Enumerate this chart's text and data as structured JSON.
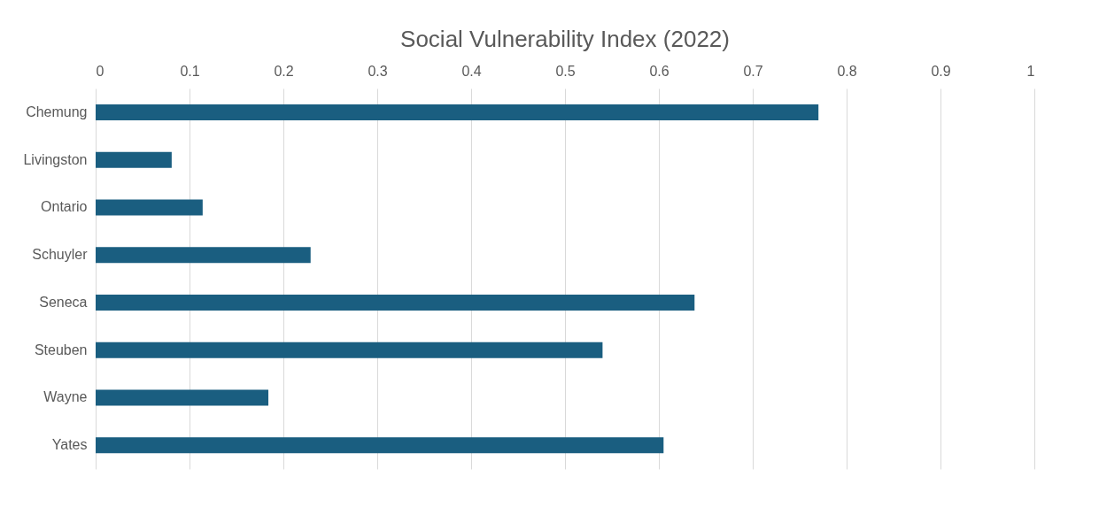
{
  "chart_data": {
    "type": "bar",
    "orientation": "horizontal",
    "title": "Social Vulnerability Index (2022)",
    "categories": [
      "Chemung",
      "Livingston",
      "Ontario",
      "Schuyler",
      "Seneca",
      "Steuben",
      "Wayne",
      "Yates"
    ],
    "values": [
      0.77,
      0.081,
      0.114,
      0.229,
      0.638,
      0.54,
      0.184,
      0.605
    ],
    "color": "#1a5e80",
    "xlim": [
      0,
      1
    ],
    "xticks": [
      0,
      0.1,
      0.2,
      0.3,
      0.4,
      0.5,
      0.6,
      0.7,
      0.8,
      0.9,
      1
    ],
    "grid": "x"
  }
}
